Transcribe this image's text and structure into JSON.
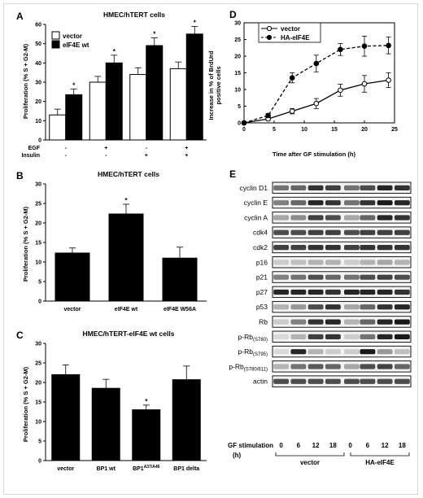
{
  "panels": {
    "A": "A",
    "B": "B",
    "C": "C",
    "D": "D",
    "E": "E"
  },
  "chart_data": [
    {
      "id": "A",
      "type": "bar",
      "title": "HMEC/hTERT cells",
      "ylabel": "Proliferation (% S + G2-M)",
      "ylim": [
        0,
        60
      ],
      "yticks": [
        0,
        10,
        20,
        30,
        40,
        50,
        60
      ],
      "grid": false,
      "legend_position": "top-left",
      "row_labels": [
        "EGF",
        "Insulin"
      ],
      "groups": [
        {
          "egf": "-",
          "insulin": "-"
        },
        {
          "egf": "+",
          "insulin": "-"
        },
        {
          "egf": "-",
          "insulin": "+"
        },
        {
          "egf": "+",
          "insulin": "+"
        }
      ],
      "series": [
        {
          "name": "vector",
          "color": "#ffffff",
          "values": [
            13,
            30,
            34,
            37
          ],
          "errors": [
            3,
            3,
            3.5,
            3.5
          ],
          "significant": [
            false,
            false,
            false,
            false
          ]
        },
        {
          "name": "eIF4E wt",
          "color": "#000000",
          "values": [
            23.5,
            40,
            49,
            55
          ],
          "errors": [
            3,
            4,
            4,
            4
          ],
          "significant": [
            true,
            true,
            true,
            true
          ]
        }
      ],
      "significance_mark": "*"
    },
    {
      "id": "B",
      "type": "bar",
      "title": "HMEC/hTERT cells",
      "ylabel": "Proliferation (% S + G2-M)",
      "ylim": [
        0,
        30
      ],
      "yticks": [
        0,
        5,
        10,
        15,
        20,
        25,
        30
      ],
      "grid": false,
      "categories": [
        "vector",
        "eIF4E wt",
        "eIF4E W56A"
      ],
      "values": [
        12.3,
        22.3,
        11
      ],
      "errors": [
        1.3,
        2.5,
        2.8
      ],
      "significant": [
        false,
        true,
        false
      ],
      "significance_mark": "*"
    },
    {
      "id": "C",
      "type": "bar",
      "title": "HMEC/hTERT-eIF4E wt cells",
      "ylabel": "Proliferation (% S + G2-M)",
      "ylim": [
        0,
        30
      ],
      "yticks": [
        0,
        5,
        10,
        15,
        20,
        25,
        30
      ],
      "grid": false,
      "categories": [
        "vector",
        "BP1 wt",
        "BP1",
        "BP1 delta"
      ],
      "category_superscripts": [
        "",
        "",
        "A37/A46",
        ""
      ],
      "values": [
        22,
        18.5,
        13,
        20.7
      ],
      "errors": [
        2.5,
        2.3,
        1.2,
        3.5
      ],
      "significant": [
        false,
        false,
        true,
        false
      ],
      "significance_mark": "*"
    },
    {
      "id": "D",
      "type": "line",
      "ylabel_line1": "Increase in % of BrdUrd",
      "ylabel_line2": "positive cells",
      "xlabel": "Time after GF stimulation (h)",
      "xlim": [
        0,
        25
      ],
      "ylim": [
        0,
        30
      ],
      "xticks": [
        0,
        5,
        10,
        15,
        20,
        25
      ],
      "yticks": [
        0,
        5,
        10,
        15,
        20,
        25,
        30
      ],
      "grid": false,
      "legend_position": "top-left",
      "series": [
        {
          "name": "vector",
          "style": "solid",
          "marker": "open-circle",
          "x": [
            0,
            4,
            8,
            12,
            16,
            20,
            24
          ],
          "y": [
            0,
            1.2,
            3.5,
            5.8,
            9.8,
            11.7,
            12.8
          ],
          "errors": [
            0,
            0.5,
            0.8,
            1.5,
            1.8,
            2.5,
            2.2
          ]
        },
        {
          "name": "HA-eIF4E",
          "style": "dashed",
          "marker": "filled-circle",
          "x": [
            0,
            4,
            8,
            12,
            16,
            20,
            24
          ],
          "y": [
            0,
            2.2,
            13.5,
            17.8,
            22,
            23,
            23.2
          ],
          "errors": [
            0,
            0.6,
            1.5,
            2.5,
            1.8,
            3,
            2.5
          ]
        }
      ]
    }
  ],
  "blot": {
    "rows": [
      {
        "label": "cyclin D1",
        "sub": ""
      },
      {
        "label": "cyclin E",
        "sub": ""
      },
      {
        "label": "cyclin A",
        "sub": ""
      },
      {
        "label": "cdk4",
        "sub": ""
      },
      {
        "label": "cdk2",
        "sub": ""
      },
      {
        "label": "p16",
        "sub": ""
      },
      {
        "label": "p21",
        "sub": ""
      },
      {
        "label": "p27",
        "sub": ""
      },
      {
        "label": "p53",
        "sub": ""
      },
      {
        "label": "Rb",
        "sub": ""
      },
      {
        "label": "p-Rb",
        "sub": "(S780)"
      },
      {
        "label": "p-Rb",
        "sub": "(S795)"
      },
      {
        "label": "p-Rb",
        "sub": "(S780/811)"
      },
      {
        "label": "actin",
        "sub": ""
      }
    ],
    "intensities": [
      [
        0.55,
        0.6,
        0.8,
        0.75,
        0.55,
        0.7,
        0.85,
        0.8
      ],
      [
        0.5,
        0.6,
        0.85,
        0.8,
        0.55,
        0.8,
        0.9,
        0.85
      ],
      [
        0.35,
        0.45,
        0.75,
        0.7,
        0.35,
        0.6,
        0.85,
        0.8
      ],
      [
        0.7,
        0.7,
        0.75,
        0.75,
        0.7,
        0.75,
        0.75,
        0.75
      ],
      [
        0.75,
        0.75,
        0.8,
        0.8,
        0.75,
        0.8,
        0.8,
        0.8
      ],
      [
        0.2,
        0.25,
        0.3,
        0.3,
        0.2,
        0.3,
        0.35,
        0.3
      ],
      [
        0.5,
        0.55,
        0.7,
        0.6,
        0.55,
        0.7,
        0.75,
        0.7
      ],
      [
        0.85,
        0.85,
        0.85,
        0.8,
        0.85,
        0.85,
        0.85,
        0.8
      ],
      [
        0.3,
        0.4,
        0.7,
        0.8,
        0.35,
        0.6,
        0.8,
        0.85
      ],
      [
        0.2,
        0.5,
        0.8,
        0.85,
        0.3,
        0.6,
        0.85,
        0.9
      ],
      [
        0.15,
        0.3,
        0.75,
        0.8,
        0.2,
        0.55,
        0.85,
        0.9
      ],
      [
        0.15,
        0.85,
        0.3,
        0.2,
        0.2,
        0.9,
        0.4,
        0.25
      ],
      [
        0.3,
        0.55,
        0.65,
        0.6,
        0.35,
        0.7,
        0.75,
        0.6
      ],
      [
        0.7,
        0.7,
        0.7,
        0.7,
        0.7,
        0.7,
        0.7,
        0.7
      ]
    ],
    "gf_label": "GF stimulation",
    "gf_unit": "(h)",
    "timepoints": [
      "0",
      "6",
      "12",
      "18",
      "0",
      "6",
      "12",
      "18"
    ],
    "groups": [
      "vector",
      "HA-eIF4E"
    ]
  }
}
